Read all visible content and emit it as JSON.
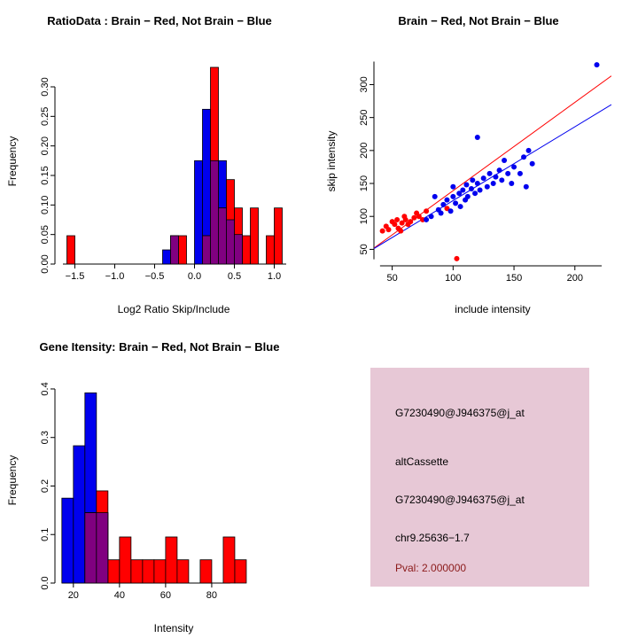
{
  "page": {
    "background": "#FFFFFF"
  },
  "colors": {
    "brain": "#FF0000",
    "not_brain": "#0000EE",
    "overlap": "#800080"
  },
  "panels": {
    "ratio_hist": {
      "title": "RatioData : Brain − Red, Not Brain − Blue",
      "xlabel": "Log2 Ratio Skip/Include",
      "ylabel": "Frequency"
    },
    "scatter": {
      "title": "Brain − Red, Not Brain − Blue",
      "xlabel": "include intensity",
      "ylabel": "skip intensity"
    },
    "gene_hist": {
      "title": "Gene Itensity: Brain − Red, Not Brain − Blue",
      "xlabel": "Intensity",
      "ylabel": "Frequency"
    },
    "info_box": {
      "background": "#E7C8D6",
      "lines": [
        "G7230490@J946375@j_at",
        "altCassette",
        "G7230490@J946375@j_at",
        "chr9.25636−1.7"
      ],
      "pval_text": "Pval: 2.000000",
      "pval_color": "#8B1A1A"
    }
  },
  "chart_data": [
    {
      "id": "ratio_hist",
      "type": "histogram",
      "title": "RatioData : Brain − Red, Not Brain − Blue",
      "xlabel": "Log2 Ratio Skip/Include",
      "ylabel": "Frequency",
      "xlim": [
        -1.75,
        1.25
      ],
      "ylim": [
        0,
        0.345
      ],
      "xticks": [
        -1.5,
        -1.0,
        -0.5,
        0.0,
        0.5,
        1.0
      ],
      "xtick_labels": [
        "−1.5",
        "−1.0",
        "−0.5",
        "0.0",
        "0.5",
        "1.0"
      ],
      "yticks": [
        0,
        0.05,
        0.1,
        0.15,
        0.2,
        0.25,
        0.3
      ],
      "ytick_labels": [
        "0.00",
        "0.05",
        "0.10",
        "0.15",
        "0.20",
        "0.25",
        "0.30"
      ],
      "xaxis_span": [
        -1.65,
        1.15
      ],
      "yaxis_span": [
        0,
        0.3
      ],
      "overlap_color": "#800080",
      "series": [
        {
          "name": "Not Brain",
          "color": "#0000EE",
          "bins": [
            [
              -0.4,
              -0.3,
              0.024
            ],
            [
              -0.3,
              -0.2,
              0.048
            ],
            [
              0.0,
              0.1,
              0.175
            ],
            [
              0.1,
              0.2,
              0.262
            ],
            [
              0.2,
              0.3,
              0.175
            ],
            [
              0.3,
              0.4,
              0.175
            ],
            [
              0.4,
              0.5,
              0.075
            ],
            [
              0.5,
              0.6,
              0.05
            ]
          ]
        },
        {
          "name": "Brain",
          "color": "#FF0000",
          "bins": [
            [
              -1.6,
              -1.5,
              0.048
            ],
            [
              -0.3,
              -0.2,
              0.048
            ],
            [
              -0.2,
              -0.1,
              0.048
            ],
            [
              0.1,
              0.2,
              0.048
            ],
            [
              0.2,
              0.3,
              0.333
            ],
            [
              0.3,
              0.4,
              0.095
            ],
            [
              0.4,
              0.5,
              0.143
            ],
            [
              0.5,
              0.6,
              0.095
            ],
            [
              0.6,
              0.7,
              0.048
            ],
            [
              0.7,
              0.8,
              0.095
            ],
            [
              0.9,
              1.0,
              0.048
            ],
            [
              1.0,
              1.1,
              0.095
            ]
          ]
        }
      ]
    },
    {
      "id": "scatter",
      "type": "scatter",
      "title": "Brain − Red, Not Brain − Blue",
      "xlabel": "include intensity",
      "ylabel": "skip intensity",
      "xlim": [
        35,
        230
      ],
      "ylim": [
        25,
        345
      ],
      "xticks": [
        50,
        100,
        150,
        200
      ],
      "xtick_labels": [
        "50",
        "100",
        "150",
        "200"
      ],
      "yticks": [
        50,
        100,
        150,
        200,
        250,
        300
      ],
      "ytick_labels": [
        "50",
        "100",
        "150",
        "200",
        "250",
        "300"
      ],
      "xaxis_span": [
        40,
        222
      ],
      "yaxis_span": [
        35,
        335
      ],
      "series": [
        {
          "name": "Brain",
          "color": "#FF0000",
          "points": [
            [
              42,
              78
            ],
            [
              45,
              85
            ],
            [
              47,
              80
            ],
            [
              50,
              92
            ],
            [
              52,
              88
            ],
            [
              54,
              95
            ],
            [
              55,
              82
            ],
            [
              57,
              78
            ],
            [
              58,
              90
            ],
            [
              60,
              100
            ],
            [
              61,
              95
            ],
            [
              63,
              88
            ],
            [
              65,
              92
            ],
            [
              68,
              98
            ],
            [
              70,
              105
            ],
            [
              72,
              100
            ],
            [
              75,
              95
            ],
            [
              78,
              108
            ],
            [
              95,
              112
            ],
            [
              103,
              36
            ]
          ]
        },
        {
          "name": "Not Brain",
          "color": "#0000EE",
          "points": [
            [
              78,
              95
            ],
            [
              82,
              100
            ],
            [
              85,
              130
            ],
            [
              88,
              110
            ],
            [
              90,
              105
            ],
            [
              92,
              118
            ],
            [
              95,
              125
            ],
            [
              98,
              108
            ],
            [
              100,
              130
            ],
            [
              100,
              145
            ],
            [
              102,
              120
            ],
            [
              105,
              135
            ],
            [
              106,
              115
            ],
            [
              108,
              140
            ],
            [
              110,
              125
            ],
            [
              111,
              148
            ],
            [
              112,
              130
            ],
            [
              115,
              142
            ],
            [
              116,
              155
            ],
            [
              118,
              135
            ],
            [
              120,
              150
            ],
            [
              120,
              220
            ],
            [
              122,
              140
            ],
            [
              125,
              158
            ],
            [
              128,
              145
            ],
            [
              130,
              165
            ],
            [
              133,
              150
            ],
            [
              135,
              160
            ],
            [
              138,
              170
            ],
            [
              140,
              155
            ],
            [
              142,
              185
            ],
            [
              145,
              165
            ],
            [
              148,
              150
            ],
            [
              150,
              175
            ],
            [
              155,
              165
            ],
            [
              158,
              190
            ],
            [
              160,
              145
            ],
            [
              162,
              200
            ],
            [
              165,
              180
            ],
            [
              218,
              330
            ]
          ]
        }
      ],
      "lines": [
        {
          "name": "brain-fit",
          "color": "#FF0000",
          "intercept": 5,
          "slope": 1.34
        },
        {
          "name": "not-brain-fit",
          "color": "#0000EE",
          "intercept": 12,
          "slope": 1.12
        }
      ]
    },
    {
      "id": "gene_hist",
      "type": "histogram",
      "title": "Gene Itensity: Brain − Red, Not Brain − Blue",
      "xlabel": "Intensity",
      "ylabel": "Frequency",
      "xlim": [
        12,
        115
      ],
      "ylim": [
        0,
        0.42
      ],
      "xticks": [
        20,
        40,
        60,
        80
      ],
      "xtick_labels": [
        "20",
        "40",
        "60",
        "80"
      ],
      "yticks": [
        0,
        0.1,
        0.2,
        0.3,
        0.4
      ],
      "ytick_labels": [
        "0.0",
        "0.1",
        "0.2",
        "0.3",
        "0.4"
      ],
      "xaxis_span": [
        15,
        88
      ],
      "yaxis_span": [
        0,
        0.4
      ],
      "overlap_color": "#800080",
      "series": [
        {
          "name": "Not Brain",
          "color": "#0000EE",
          "bins": [
            [
              15,
              20,
              0.175
            ],
            [
              20,
              25,
              0.283
            ],
            [
              25,
              30,
              0.392
            ],
            [
              30,
              35,
              0.145
            ]
          ]
        },
        {
          "name": "Brain",
          "color": "#FF0000",
          "bins": [
            [
              25,
              30,
              0.145
            ],
            [
              30,
              35,
              0.19
            ],
            [
              35,
              40,
              0.048
            ],
            [
              40,
              45,
              0.095
            ],
            [
              45,
              50,
              0.048
            ],
            [
              50,
              55,
              0.048
            ],
            [
              55,
              60,
              0.048
            ],
            [
              60,
              65,
              0.095
            ],
            [
              65,
              70,
              0.048
            ],
            [
              75,
              80,
              0.048
            ],
            [
              85,
              90,
              0.095
            ],
            [
              90,
              95,
              0.048
            ]
          ]
        }
      ]
    }
  ]
}
